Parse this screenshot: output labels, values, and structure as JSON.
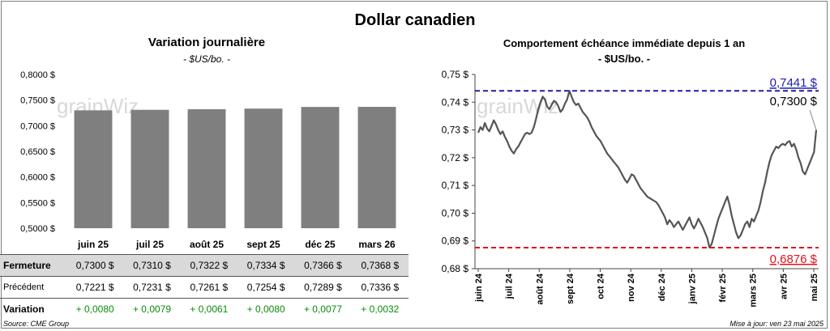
{
  "title": "Dollar canadien",
  "left_panel": {
    "title": "Variation  journalière",
    "unit": "- $US/bo. -"
  },
  "right_panel": {
    "title": "Comportement échéance immédiate depuis 1 an",
    "unit": "- $US/bo. -"
  },
  "watermark": "grainWiz",
  "table": {
    "rows": [
      {
        "label": "Fermeture",
        "values": [
          "0,7300  $",
          "0,7310  $",
          "0,7322  $",
          "0,7334  $",
          "0,7366  $",
          "0,7368  $"
        ]
      },
      {
        "label": "Précédent",
        "values": [
          "0,7221  $",
          "0,7231  $",
          "0,7261  $",
          "0,7254  $",
          "0,7289  $",
          "0,7336  $"
        ]
      },
      {
        "label": "Variation",
        "values": [
          "+ 0,0080",
          "+ 0,0079",
          "+ 0,0061",
          "+ 0,0080",
          "+ 0,0077",
          "+ 0,0032"
        ]
      }
    ]
  },
  "footer": {
    "source": "Source: CME Group",
    "updated": "Mise à jour: ven 23 mai 2025"
  },
  "colors": {
    "bar": "#7f7f7f",
    "line": "#555555",
    "high": "#1f1fa8",
    "low": "#e0141e",
    "change": "#0a8a0a"
  },
  "chart_data": [
    {
      "type": "bar",
      "categories": [
        "juin 25",
        "juil 25",
        "août 25",
        "sept 25",
        "déc 25",
        "mars 26"
      ],
      "values": [
        0.73,
        0.731,
        0.7322,
        0.7334,
        0.7366,
        0.7368
      ],
      "ylim": [
        0.5,
        0.8
      ],
      "yticks": [
        "0,5000 $",
        "0,5500 $",
        "0,6000 $",
        "0,6500 $",
        "0,7000 $",
        "0,7500 $",
        "0,8000 $"
      ],
      "ytick_values": [
        0.5,
        0.55,
        0.6,
        0.65,
        0.7,
        0.75,
        0.8
      ],
      "grid": false
    },
    {
      "type": "line",
      "x_labels": [
        "juin 24",
        "juil 24",
        "août 24",
        "sept 24",
        "oct 24",
        "nov 24",
        "déc 24",
        "janv 25",
        "févr 25",
        "mars 25",
        "avr 25",
        "mai 25"
      ],
      "ylim": [
        0.68,
        0.75
      ],
      "yticks": [
        "0,68 $",
        "0,69 $",
        "0,70 $",
        "0,71 $",
        "0,72 $",
        "0,73 $",
        "0,74 $",
        "0,75 $"
      ],
      "ytick_values": [
        0.68,
        0.69,
        0.7,
        0.71,
        0.72,
        0.73,
        0.74,
        0.75
      ],
      "values": [
        0.729,
        0.731,
        0.73,
        0.7325,
        0.7305,
        0.7295,
        0.7315,
        0.7335,
        0.732,
        0.73,
        0.7285,
        0.7295,
        0.7275,
        0.726,
        0.724,
        0.7225,
        0.7215,
        0.723,
        0.724,
        0.7255,
        0.727,
        0.7285,
        0.729,
        0.7285,
        0.729,
        0.731,
        0.734,
        0.7375,
        0.74,
        0.742,
        0.741,
        0.7385,
        0.7375,
        0.739,
        0.7405,
        0.74,
        0.7385,
        0.7365,
        0.7375,
        0.7395,
        0.741,
        0.7441,
        0.742,
        0.74,
        0.739,
        0.7395,
        0.738,
        0.7365,
        0.7355,
        0.7345,
        0.733,
        0.731,
        0.7295,
        0.728,
        0.727,
        0.726,
        0.7245,
        0.723,
        0.7215,
        0.7205,
        0.7195,
        0.7185,
        0.7175,
        0.7165,
        0.715,
        0.7135,
        0.712,
        0.711,
        0.7125,
        0.714,
        0.7135,
        0.712,
        0.7105,
        0.709,
        0.708,
        0.707,
        0.706,
        0.7055,
        0.705,
        0.7045,
        0.704,
        0.703,
        0.7015,
        0.7,
        0.6985,
        0.696,
        0.6975,
        0.6965,
        0.695,
        0.696,
        0.697,
        0.6955,
        0.694,
        0.6955,
        0.697,
        0.6985,
        0.696,
        0.6945,
        0.696,
        0.698,
        0.6965,
        0.695,
        0.693,
        0.691,
        0.6876,
        0.689,
        0.692,
        0.695,
        0.698,
        0.7,
        0.702,
        0.704,
        0.706,
        0.703,
        0.699,
        0.696,
        0.693,
        0.691,
        0.692,
        0.694,
        0.696,
        0.697,
        0.695,
        0.698,
        0.697,
        0.699,
        0.701,
        0.704,
        0.708,
        0.711,
        0.715,
        0.7185,
        0.721,
        0.7225,
        0.724,
        0.7235,
        0.7245,
        0.725,
        0.7245,
        0.7255,
        0.726,
        0.724,
        0.725,
        0.723,
        0.72,
        0.718,
        0.715,
        0.714,
        0.716,
        0.718,
        0.72,
        0.722,
        0.73
      ],
      "max_label": "0,7441 $",
      "max_value": 0.7441,
      "min_label": "0,6876 $",
      "min_value": 0.6876,
      "last_label": "0,7300 $",
      "last_value": 0.73,
      "grid": false
    }
  ]
}
